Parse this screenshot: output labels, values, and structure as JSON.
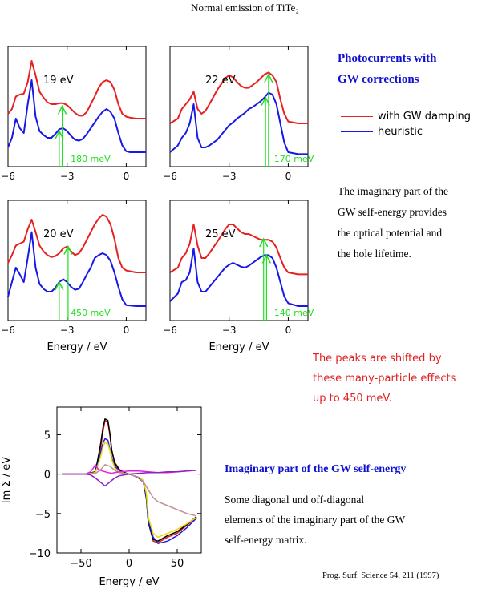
{
  "title": "Normal emission of TiTe₂",
  "heading_main": [
    "Photocurrents with",
    "GW corrections"
  ],
  "legend": [
    {
      "label": "with GW damping",
      "color": "#e82020"
    },
    {
      "label": "heuristic",
      "color": "#1818e8"
    }
  ],
  "explanation": [
    "The imaginary part of the",
    "GW self-energy provides",
    "the optical potential and",
    "the hole lifetime."
  ],
  "shift_note": [
    "The peaks are shifted by",
    "these many-particle effects",
    "up to 450 meV."
  ],
  "se_heading": "Imaginary part of the GW self-energy",
  "se_text": [
    "Some diagonal und off-diagonal",
    "elements of the imaginary part of the GW",
    "self-energy matrix."
  ],
  "reference": "Prog. Surf. Science 54, 211 (1997)",
  "chart_data": [
    {
      "type": "line",
      "panel": "19 eV",
      "x_ticks": [
        "−6",
        "−3",
        "0"
      ],
      "xlim": [
        -6,
        1
      ],
      "series": [
        {
          "color": "#e82020",
          "x": [
            -6,
            -5.8,
            -5.6,
            -5.4,
            -5.2,
            -5.0,
            -4.8,
            -4.6,
            -4.4,
            -4.2,
            -4.0,
            -3.8,
            -3.6,
            -3.4,
            -3.2,
            -3.0,
            -2.8,
            -2.6,
            -2.4,
            -2.2,
            -2.0,
            -1.8,
            -1.6,
            -1.4,
            -1.2,
            -1.0,
            -0.8,
            -0.6,
            -0.4,
            -0.2,
            0,
            0.2,
            0.5,
            1
          ],
          "y": [
            0.45,
            0.5,
            0.63,
            0.65,
            0.66,
            0.78,
            1.0,
            0.85,
            0.68,
            0.62,
            0.57,
            0.55,
            0.55,
            0.56,
            0.56,
            0.54,
            0.5,
            0.46,
            0.43,
            0.43,
            0.47,
            0.55,
            0.63,
            0.72,
            0.78,
            0.8,
            0.78,
            0.7,
            0.55,
            0.45,
            0.42,
            0.41,
            0.4,
            0.4
          ]
        },
        {
          "color": "#1818e8",
          "x": [
            -6,
            -5.8,
            -5.6,
            -5.4,
            -5.2,
            -5.0,
            -4.8,
            -4.6,
            -4.4,
            -4.2,
            -4.0,
            -3.8,
            -3.6,
            -3.4,
            -3.2,
            -3.0,
            -2.8,
            -2.6,
            -2.4,
            -2.2,
            -2.0,
            -1.8,
            -1.6,
            -1.4,
            -1.2,
            -1.0,
            -0.8,
            -0.6,
            -0.4,
            -0.2,
            0,
            0.2,
            0.5,
            1
          ],
          "y": [
            0.1,
            0.2,
            0.4,
            0.3,
            0.25,
            0.55,
            0.8,
            0.42,
            0.27,
            0.23,
            0.2,
            0.2,
            0.24,
            0.29,
            0.3,
            0.27,
            0.22,
            0.18,
            0.17,
            0.19,
            0.24,
            0.3,
            0.36,
            0.42,
            0.47,
            0.5,
            0.47,
            0.4,
            0.25,
            0.12,
            0.06,
            0.05,
            0.05,
            0.05
          ]
        }
      ],
      "arrows": [
        {
          "x": -3.25,
          "from": -0.3,
          "to": 0.53,
          "color": "#20e020"
        },
        {
          "x": -3.4,
          "from": -0.3,
          "to": 0.27,
          "color": "#20e020"
        }
      ],
      "shift_label": "180 meV"
    },
    {
      "type": "line",
      "panel": "22 eV",
      "x_ticks": [
        "−6",
        "−3",
        "0"
      ],
      "xlim": [
        -6,
        1
      ],
      "series": [
        {
          "color": "#e82020",
          "x": [
            -6,
            -5.6,
            -5.4,
            -5.2,
            -5.0,
            -4.8,
            -4.6,
            -4.4,
            -4.2,
            -4.0,
            -3.6,
            -3.2,
            -3.0,
            -2.8,
            -2.6,
            -2.4,
            -2.2,
            -2.0,
            -1.8,
            -1.6,
            -1.4,
            -1.2,
            -1.0,
            -0.8,
            -0.6,
            -0.4,
            -0.2,
            0,
            0.5,
            1
          ],
          "y": [
            0.35,
            0.4,
            0.5,
            0.55,
            0.6,
            0.68,
            0.5,
            0.45,
            0.48,
            0.55,
            0.7,
            0.82,
            0.85,
            0.83,
            0.78,
            0.74,
            0.72,
            0.72,
            0.75,
            0.78,
            0.82,
            0.86,
            0.88,
            0.85,
            0.78,
            0.6,
            0.45,
            0.37,
            0.35,
            0.35
          ]
        },
        {
          "color": "#1818e8",
          "x": [
            -6,
            -5.6,
            -5.4,
            -5.2,
            -5.0,
            -4.8,
            -4.6,
            -4.4,
            -4.2,
            -4.0,
            -3.6,
            -3.2,
            -3.0,
            -2.8,
            -2.6,
            -2.4,
            -2.2,
            -2.0,
            -1.8,
            -1.6,
            -1.4,
            -1.2,
            -1.0,
            -0.8,
            -0.6,
            -0.4,
            -0.2,
            0,
            0.5,
            1
          ],
          "y": [
            0.05,
            0.12,
            0.2,
            0.25,
            0.35,
            0.55,
            0.2,
            0.1,
            0.1,
            0.12,
            0.18,
            0.28,
            0.33,
            0.36,
            0.4,
            0.43,
            0.46,
            0.5,
            0.52,
            0.55,
            0.58,
            0.62,
            0.67,
            0.65,
            0.55,
            0.35,
            0.15,
            0.05,
            0.03,
            0.03
          ]
        }
      ],
      "arrows": [
        {
          "x": -1.0,
          "from": -0.3,
          "to": 0.86,
          "color": "#20e020"
        },
        {
          "x": -1.15,
          "from": -0.3,
          "to": 0.62,
          "color": "#20e020"
        }
      ],
      "shift_label": "170 meV"
    },
    {
      "type": "line",
      "panel": "20 eV",
      "x_ticks": [
        "−6",
        "−3",
        "0"
      ],
      "xlim": [
        -6,
        1
      ],
      "series": [
        {
          "color": "#e82020",
          "x": [
            -6,
            -5.8,
            -5.6,
            -5.4,
            -5.2,
            -5.0,
            -4.8,
            -4.6,
            -4.4,
            -4.2,
            -4.0,
            -3.8,
            -3.6,
            -3.4,
            -3.2,
            -3.0,
            -2.8,
            -2.6,
            -2.4,
            -2.2,
            -2.0,
            -1.8,
            -1.6,
            -1.4,
            -1.2,
            -1.0,
            -0.8,
            -0.6,
            -0.4,
            -0.2,
            0,
            0.5,
            1
          ],
          "y": [
            0.5,
            0.58,
            0.68,
            0.7,
            0.72,
            0.85,
            0.95,
            0.82,
            0.68,
            0.62,
            0.58,
            0.56,
            0.57,
            0.6,
            0.65,
            0.67,
            0.62,
            0.58,
            0.6,
            0.66,
            0.74,
            0.82,
            0.9,
            0.96,
            1.0,
            0.98,
            0.9,
            0.75,
            0.55,
            0.45,
            0.42,
            0.4,
            0.4
          ]
        },
        {
          "color": "#1818e8",
          "x": [
            -6,
            -5.8,
            -5.6,
            -5.4,
            -5.2,
            -5.0,
            -4.8,
            -4.6,
            -4.4,
            -4.2,
            -4.0,
            -3.8,
            -3.6,
            -3.4,
            -3.2,
            -3.0,
            -2.8,
            -2.6,
            -2.4,
            -2.2,
            -2.0,
            -1.8,
            -1.6,
            -1.4,
            -1.2,
            -1.0,
            -0.8,
            -0.6,
            -0.4,
            -0.2,
            0,
            0.5,
            1
          ],
          "y": [
            0.15,
            0.3,
            0.45,
            0.38,
            0.3,
            0.55,
            0.82,
            0.45,
            0.28,
            0.23,
            0.2,
            0.2,
            0.24,
            0.3,
            0.33,
            0.3,
            0.25,
            0.22,
            0.23,
            0.3,
            0.38,
            0.45,
            0.55,
            0.58,
            0.6,
            0.58,
            0.52,
            0.4,
            0.25,
            0.12,
            0.06,
            0.05,
            0.05
          ]
        }
      ],
      "arrows": [
        {
          "x": -2.95,
          "from": -0.3,
          "to": 0.67,
          "color": "#20e020"
        },
        {
          "x": -3.4,
          "from": -0.3,
          "to": 0.3,
          "color": "#20e020"
        }
      ],
      "shift_label": "450 meV"
    },
    {
      "type": "line",
      "panel": "25 eV",
      "x_ticks": [
        "−6",
        "−3",
        "0"
      ],
      "xlim": [
        -6,
        1
      ],
      "series": [
        {
          "color": "#e82020",
          "x": [
            -6,
            -5.6,
            -5.4,
            -5.2,
            -5.0,
            -4.8,
            -4.6,
            -4.4,
            -4.2,
            -4.0,
            -3.6,
            -3.2,
            -3.0,
            -2.8,
            -2.6,
            -2.4,
            -2.2,
            -2.0,
            -1.8,
            -1.6,
            -1.4,
            -1.2,
            -1.0,
            -0.8,
            -0.6,
            -0.4,
            -0.2,
            0,
            0.5,
            1
          ],
          "y": [
            0.4,
            0.45,
            0.55,
            0.6,
            0.7,
            0.9,
            0.68,
            0.55,
            0.55,
            0.6,
            0.72,
            0.85,
            0.9,
            0.9,
            0.86,
            0.82,
            0.8,
            0.8,
            0.78,
            0.76,
            0.74,
            0.74,
            0.74,
            0.72,
            0.66,
            0.55,
            0.45,
            0.4,
            0.38,
            0.38
          ]
        },
        {
          "color": "#1818e8",
          "x": [
            -6,
            -5.6,
            -5.4,
            -5.2,
            -5.0,
            -4.8,
            -4.6,
            -4.4,
            -4.2,
            -4.0,
            -3.6,
            -3.2,
            -3.0,
            -2.8,
            -2.6,
            -2.4,
            -2.2,
            -2.0,
            -1.8,
            -1.6,
            -1.4,
            -1.2,
            -1.0,
            -0.8,
            -0.6,
            -0.4,
            -0.2,
            0,
            0.5,
            1
          ],
          "y": [
            0.1,
            0.18,
            0.3,
            0.32,
            0.4,
            0.65,
            0.3,
            0.2,
            0.2,
            0.25,
            0.35,
            0.45,
            0.48,
            0.5,
            0.48,
            0.46,
            0.45,
            0.47,
            0.5,
            0.53,
            0.56,
            0.58,
            0.58,
            0.55,
            0.45,
            0.3,
            0.15,
            0.08,
            0.05,
            0.05
          ]
        }
      ],
      "arrows": [
        {
          "x": -1.25,
          "from": -0.3,
          "to": 0.75,
          "color": "#20e020"
        },
        {
          "x": -1.1,
          "from": -0.3,
          "to": 0.58,
          "color": "#20e020"
        }
      ],
      "shift_label": "140 meV"
    },
    {
      "type": "line",
      "xlabel": "Energy / eV",
      "ylabel": "Im Σ / eV",
      "xlim": [
        -75,
        75
      ],
      "ylim": [
        -10,
        8.5
      ],
      "x_ticks": [
        -50,
        0,
        50
      ],
      "y_ticks": [
        5,
        0,
        -5,
        -10
      ],
      "series": [
        {
          "color": "#e82020",
          "x": [
            -70,
            -45,
            -35,
            -30,
            -27,
            -25,
            -22,
            -20,
            -18,
            -15,
            -10,
            -5,
            0,
            5,
            10,
            15,
            18,
            20,
            25,
            30,
            40,
            50,
            60,
            70
          ],
          "y": [
            0,
            0,
            0.3,
            3,
            5.5,
            6.8,
            6.5,
            5,
            3,
            1.5,
            0.6,
            0.2,
            0,
            -0.2,
            -0.5,
            -1,
            -3,
            -6,
            -8.5,
            -8.7,
            -8,
            -7.5,
            -6.5,
            -5.5
          ]
        },
        {
          "color": "#000000",
          "x": [
            -70,
            -45,
            -35,
            -30,
            -27,
            -25,
            -22,
            -20,
            -18,
            -15,
            -10,
            -5,
            0,
            5,
            10,
            15,
            18,
            20,
            25,
            30,
            40,
            50,
            60,
            70
          ],
          "y": [
            0,
            0,
            0.3,
            3.5,
            6,
            7,
            6.8,
            5.2,
            3,
            1.4,
            0.5,
            0.2,
            0,
            -0.2,
            -0.5,
            -1,
            -3.2,
            -6.2,
            -8.3,
            -8.5,
            -7.8,
            -7.3,
            -6.4,
            -5.4
          ]
        },
        {
          "color": "#2020e0",
          "x": [
            -70,
            -45,
            -35,
            -30,
            -27,
            -25,
            -22,
            -20,
            -18,
            -15,
            -10,
            -5,
            0,
            5,
            10,
            15,
            18,
            20,
            25,
            30,
            40,
            50,
            60,
            70
          ],
          "y": [
            0,
            0,
            0.2,
            2.5,
            4,
            4.5,
            4.3,
            3.2,
            2,
            1,
            0.4,
            0.1,
            0,
            -0.2,
            -0.5,
            -1,
            -3,
            -6,
            -8,
            -8.8,
            -8.5,
            -7.8,
            -6.8,
            -5.6
          ]
        },
        {
          "color": "#e8e000",
          "x": [
            -70,
            -45,
            -35,
            -30,
            -27,
            -25,
            -22,
            -20,
            -18,
            -15,
            -10,
            -5,
            0,
            5,
            10,
            15,
            18,
            20,
            25,
            30,
            40,
            50,
            60,
            70
          ],
          "y": [
            0,
            0,
            0.2,
            2,
            3.5,
            4,
            3.8,
            3,
            1.8,
            0.8,
            0.3,
            0.1,
            0,
            -0.2,
            -0.4,
            -0.8,
            -2.5,
            -5.5,
            -7.5,
            -8,
            -7.5,
            -7,
            -6.3,
            -5.5
          ]
        },
        {
          "color": "#c09090",
          "x": [
            -70,
            -45,
            -35,
            -30,
            -25,
            -20,
            -15,
            -10,
            -5,
            0,
            5,
            10,
            15,
            20,
            25,
            30,
            40,
            50,
            60,
            70
          ],
          "y": [
            0,
            0,
            0.1,
            0.5,
            1.2,
            1,
            0.5,
            0.2,
            0.1,
            0,
            -0.2,
            -0.4,
            -1,
            -2,
            -3,
            -3.5,
            -4,
            -4.5,
            -5,
            -5.3
          ]
        },
        {
          "color": "#e020e0",
          "x": [
            -70,
            -45,
            -40,
            -37,
            -35,
            -32,
            -28,
            -25,
            -22,
            -18,
            -15,
            -10,
            0,
            10,
            20,
            30,
            40,
            50,
            60,
            70
          ],
          "y": [
            0,
            0,
            0.3,
            0.8,
            1.2,
            0.6,
            0.4,
            0.3,
            0.2,
            0.1,
            0.2,
            0.3,
            0.4,
            0.4,
            0.3,
            0.2,
            0.2,
            0.3,
            0.4,
            0.5
          ]
        },
        {
          "color": "#9020c0",
          "x": [
            -70,
            -45,
            -40,
            -35,
            -30,
            -25,
            -20,
            -15,
            -10,
            -5,
            0,
            10,
            20,
            30,
            40,
            50,
            60,
            70
          ],
          "y": [
            0,
            0,
            -0.1,
            -0.5,
            -1,
            -1.5,
            -1,
            -0.5,
            -0.2,
            -0.1,
            0,
            0.1,
            0.2,
            0.2,
            0.3,
            0.3,
            0.4,
            0.5
          ]
        }
      ]
    }
  ],
  "panel_axis_label": "Energy / eV"
}
